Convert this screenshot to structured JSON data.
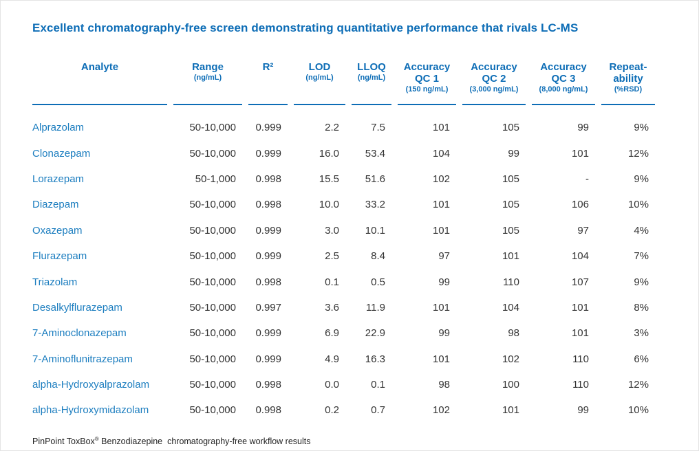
{
  "title": "Excellent chromatography-free screen demonstrating quantitative performance that rivals LC-MS",
  "colors": {
    "accent": "#0d6db6",
    "analyte_link_blue": "#1b7dbf",
    "body_text": "#333333"
  },
  "table": {
    "columns": [
      {
        "lines": [
          "Analyte"
        ],
        "sub": ""
      },
      {
        "lines": [
          "Range"
        ],
        "sub": "(ng/mL)"
      },
      {
        "lines": [
          "R²"
        ],
        "sub": ""
      },
      {
        "lines": [
          "LOD"
        ],
        "sub": "(ng/mL)"
      },
      {
        "lines": [
          "LLOQ"
        ],
        "sub": "(ng/mL)"
      },
      {
        "lines": [
          "Accuracy",
          "QC 1"
        ],
        "sub": "(150 ng/mL)"
      },
      {
        "lines": [
          "Accuracy",
          "QC 2"
        ],
        "sub": "(3,000 ng/mL)"
      },
      {
        "lines": [
          "Accuracy",
          "QC 3"
        ],
        "sub": "(8,000 ng/mL)"
      },
      {
        "lines": [
          "Repeat-",
          "ability"
        ],
        "sub": "(%RSD)"
      }
    ],
    "rows": [
      [
        "Alprazolam",
        "50-10,000",
        "0.999",
        "2.2",
        "7.5",
        "101",
        "105",
        "99",
        "9%"
      ],
      [
        "Clonazepam",
        "50-10,000",
        "0.999",
        "16.0",
        "53.4",
        "104",
        "99",
        "101",
        "12%"
      ],
      [
        "Lorazepam",
        "50-1,000",
        "0.998",
        "15.5",
        "51.6",
        "102",
        "105",
        "-",
        "9%"
      ],
      [
        "Diazepam",
        "50-10,000",
        "0.998",
        "10.0",
        "33.2",
        "101",
        "105",
        "106",
        "10%"
      ],
      [
        "Oxazepam",
        "50-10,000",
        "0.999",
        "3.0",
        "10.1",
        "101",
        "105",
        "97",
        "4%"
      ],
      [
        "Flurazepam",
        "50-10,000",
        "0.999",
        "2.5",
        "8.4",
        "97",
        "101",
        "104",
        "7%"
      ],
      [
        "Triazolam",
        "50-10,000",
        "0.998",
        "0.1",
        "0.5",
        "99",
        "110",
        "107",
        "9%"
      ],
      [
        "Desalkylflurazepam",
        "50-10,000",
        "0.997",
        "3.6",
        "11.9",
        "101",
        "104",
        "101",
        "8%"
      ],
      [
        "7-Aminoclonazepam",
        "50-10,000",
        "0.999",
        "6.9",
        "22.9",
        "99",
        "98",
        "101",
        "3%"
      ],
      [
        "7-Aminoflunitrazepam",
        "50-10,000",
        "0.999",
        "4.9",
        "16.3",
        "101",
        "102",
        "110",
        "6%"
      ],
      [
        "alpha-Hydroxyalprazolam",
        "50-10,000",
        "0.998",
        "0.0",
        "0.1",
        "98",
        "100",
        "110",
        "12%"
      ],
      [
        "alpha-Hydroxymidazolam",
        "50-10,000",
        "0.998",
        "0.2",
        "0.7",
        "102",
        "101",
        "99",
        "10%"
      ]
    ]
  },
  "footnote": {
    "product": "PinPoint ToxBox",
    "registered": "®",
    "text": " Benzodiazepine  chromatography-free workflow results"
  }
}
